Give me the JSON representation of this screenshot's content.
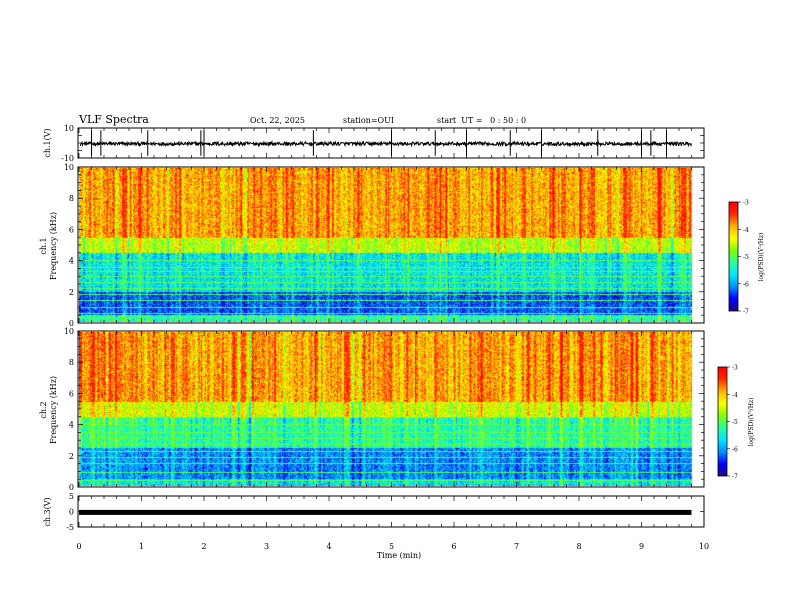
{
  "header": {
    "title": "VLF Spectra",
    "date": "Oct. 22, 2025",
    "station": "station=OUI",
    "start": "start  UT =   0 : 50 : 0"
  },
  "chart_data": [
    {
      "type": "line",
      "panel": "ch1-waveform",
      "ylabel": "ch.1(V)",
      "ylim": [
        -10,
        10
      ],
      "yticks": [
        "10",
        "-10"
      ],
      "x_unit": "min",
      "xlim": [
        0,
        10
      ],
      "baseline": -0.5,
      "noise_amplitude": 1.2,
      "spike_times": [
        0.2,
        0.35,
        1.1,
        1.95,
        2.0,
        3.75,
        5.0,
        5.7,
        6.2,
        6.9,
        7.4,
        8.3,
        9.0,
        9.15,
        9.4
      ]
    },
    {
      "type": "heatmap",
      "panel": "ch1-spectrogram",
      "ylabel_1": "ch.1",
      "ylabel_2": "Frequency (kHz)",
      "ylim": [
        0,
        10
      ],
      "yticks": [
        "0",
        "2",
        "4",
        "6",
        "8",
        "10"
      ],
      "xlim": [
        0,
        10
      ],
      "data_end_min": 9.8,
      "colorbar": {
        "label": "log(PSD)(V²/Hz)",
        "range": [
          -7,
          -3
        ],
        "ticks": [
          "-3",
          "-4",
          "-5",
          "-6",
          "-7"
        ]
      },
      "bands_log_psd": [
        {
          "f_range_khz": [
            0,
            0.5
          ],
          "level": -5.3
        },
        {
          "f_range_khz": [
            0.5,
            2.0
          ],
          "level": -6.3
        },
        {
          "f_range_khz": [
            2.0,
            4.5
          ],
          "level": -5.6
        },
        {
          "f_range_khz": [
            4.5,
            5.5
          ],
          "level": -4.6
        },
        {
          "f_range_khz": [
            5.5,
            10.0
          ],
          "level": -3.9
        }
      ],
      "tone_lines_khz": [
        0.3,
        0.6,
        1.0,
        1.4,
        1.8,
        2.2,
        2.6,
        3.0,
        3.3,
        3.6,
        4.0
      ]
    },
    {
      "type": "heatmap",
      "panel": "ch2-spectrogram",
      "ylabel_1": "ch.2",
      "ylabel_2": "Frequency (kHz)",
      "ylim": [
        0,
        10
      ],
      "yticks": [
        "0",
        "2",
        "4",
        "6",
        "8",
        "10"
      ],
      "xlim": [
        0,
        10
      ],
      "data_end_min": 9.8,
      "colorbar": {
        "label": "log(PSD)(V²/Hz)",
        "range": [
          -7,
          -3
        ],
        "ticks": [
          "-3",
          "-4",
          "-5",
          "-6",
          "-7"
        ]
      },
      "bands_log_psd": [
        {
          "f_range_khz": [
            0,
            0.5
          ],
          "level": -5.6
        },
        {
          "f_range_khz": [
            0.5,
            2.5
          ],
          "level": -6.1
        },
        {
          "f_range_khz": [
            2.5,
            4.5
          ],
          "level": -5.3
        },
        {
          "f_range_khz": [
            4.5,
            5.5
          ],
          "level": -4.5
        },
        {
          "f_range_khz": [
            5.5,
            10.0
          ],
          "level": -3.9
        }
      ],
      "tone_lines_khz": [
        0.4,
        0.9,
        1.5,
        1.9,
        2.3,
        2.7,
        3.1,
        3.5,
        4.0,
        4.5
      ]
    },
    {
      "type": "line",
      "panel": "ch3-waveform",
      "ylabel": "ch.3(V)",
      "ylim": [
        -5,
        5
      ],
      "yticks": [
        "5",
        "0",
        "-5"
      ],
      "xlim": [
        0,
        10
      ],
      "baseline": -0.3,
      "data_end_min": 9.8
    }
  ],
  "xaxis": {
    "label": "Time (min)",
    "ticks": [
      "0",
      "1",
      "2",
      "3",
      "4",
      "5",
      "6",
      "7",
      "8",
      "9",
      "10"
    ]
  },
  "colormap": [
    "#1c0a80",
    "#0000ff",
    "#0090ff",
    "#00e5ff",
    "#2aff9a",
    "#7fff00",
    "#ffff00",
    "#ffb000",
    "#ff2a00",
    "#ff0000"
  ]
}
